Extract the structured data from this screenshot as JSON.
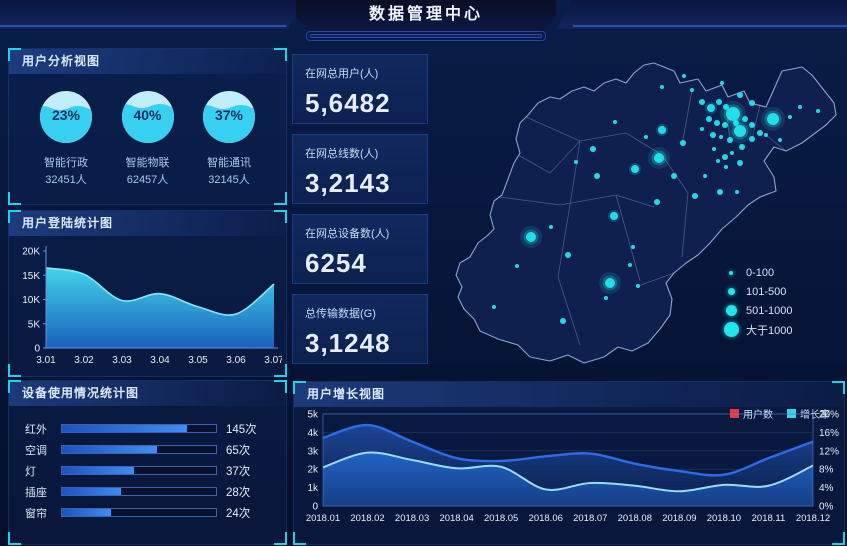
{
  "colors": {
    "accent": "#1fd4e8",
    "dot_cyan": "#22e5ee",
    "bar_blue": "#2e7be4",
    "users_line": "#2e6be8",
    "growth_line": "#9adcf6",
    "legend_users_red": "#e23c3c",
    "legend_growth_cyan": "#35d3ea"
  },
  "header": {
    "title": "数据管理中心"
  },
  "panels": {
    "user_analysis": {
      "title": "用户分析视图",
      "gauges": [
        {
          "percent": "23%",
          "label": "智能行政",
          "count": "32451人"
        },
        {
          "percent": "40%",
          "label": "智能物联",
          "count": "62457人"
        },
        {
          "percent": "37%",
          "label": "智能通讯",
          "count": "32145人"
        }
      ]
    },
    "login": {
      "title": "用户登陆统计图"
    },
    "device": {
      "title": "设备使用情况统计图"
    },
    "growth": {
      "title": "用户增长视图",
      "legend": [
        {
          "label": "用户数",
          "color": "#e23c3c"
        },
        {
          "label": "增长率",
          "color": "#35d3ea"
        }
      ]
    }
  },
  "stats": {
    "items": [
      {
        "label": "在网总用户(人)",
        "value": "5,6482"
      },
      {
        "label": "在网总线数(人)",
        "value": "3,2143"
      },
      {
        "label": "在网总设备数(人)",
        "value": "6254"
      },
      {
        "label": "总传输数据(G)",
        "value": "3,1248"
      }
    ]
  },
  "map": {
    "legend": [
      {
        "label": "0-100",
        "size": 4
      },
      {
        "label": "101-500",
        "size": 7
      },
      {
        "label": "501-1000",
        "size": 11
      },
      {
        "label": "大于1000",
        "size": 15
      }
    ],
    "points": [
      [
        303,
        69,
        7
      ],
      [
        310,
        86,
        6
      ],
      [
        343,
        74,
        6
      ],
      [
        229,
        113,
        5
      ],
      [
        262,
        45,
        2
      ],
      [
        272,
        57,
        3
      ],
      [
        281,
        63,
        4
      ],
      [
        289,
        57,
        3
      ],
      [
        296,
        62,
        3
      ],
      [
        279,
        74,
        3
      ],
      [
        287,
        78,
        3
      ],
      [
        295,
        80,
        3
      ],
      [
        272,
        84,
        2
      ],
      [
        283,
        90,
        3
      ],
      [
        291,
        92,
        2
      ],
      [
        300,
        95,
        3
      ],
      [
        306,
        78,
        3
      ],
      [
        315,
        74,
        3
      ],
      [
        322,
        80,
        3
      ],
      [
        330,
        88,
        3
      ],
      [
        336,
        90,
        2
      ],
      [
        322,
        94,
        3
      ],
      [
        312,
        102,
        3
      ],
      [
        302,
        108,
        2
      ],
      [
        295,
        112,
        3
      ],
      [
        284,
        104,
        2
      ],
      [
        288,
        116,
        2
      ],
      [
        296,
        122,
        2
      ],
      [
        310,
        118,
        3
      ],
      [
        232,
        42,
        2
      ],
      [
        254,
        31,
        2
      ],
      [
        292,
        38,
        2
      ],
      [
        310,
        50,
        3
      ],
      [
        322,
        58,
        3
      ],
      [
        350,
        95,
        2
      ],
      [
        360,
        72,
        2
      ],
      [
        370,
        62,
        2
      ],
      [
        388,
        66,
        2
      ],
      [
        216,
        92,
        2
      ],
      [
        253,
        98,
        3
      ],
      [
        185,
        77,
        2
      ],
      [
        146,
        117,
        2
      ],
      [
        163,
        104,
        3
      ],
      [
        167,
        131,
        3
      ],
      [
        205,
        124,
        4
      ],
      [
        232,
        85,
        4
      ],
      [
        244,
        131,
        3
      ],
      [
        265,
        151,
        3
      ],
      [
        275,
        131,
        2
      ],
      [
        227,
        157,
        3
      ],
      [
        203,
        202,
        2
      ],
      [
        184,
        171,
        4
      ],
      [
        101,
        192,
        5
      ],
      [
        138,
        210,
        3
      ],
      [
        87,
        221,
        2
      ],
      [
        121,
        182,
        2
      ],
      [
        180,
        238,
        5
      ],
      [
        176,
        253,
        2
      ],
      [
        133,
        276,
        3
      ],
      [
        64,
        262,
        2
      ],
      [
        200,
        220,
        2
      ],
      [
        208,
        241,
        2
      ],
      [
        290,
        147,
        3
      ],
      [
        307,
        147,
        2
      ]
    ]
  },
  "chart_data": [
    {
      "id": "login",
      "type": "area",
      "title": "用户登陆统计图",
      "x": [
        "3.01",
        "3.02",
        "3.03",
        "3.04",
        "3.05",
        "3.06",
        "3.07"
      ],
      "values": [
        16500,
        15200,
        9800,
        11200,
        8500,
        7000,
        13200
      ],
      "yticks": [
        "0",
        "5K",
        "10K",
        "15K",
        "20K"
      ],
      "ylim": [
        0,
        20000
      ],
      "grid": false
    },
    {
      "id": "growth",
      "type": "area",
      "title": "用户增长视图",
      "x": [
        "2018.01",
        "2018.02",
        "2018.03",
        "2018.04",
        "2018.05",
        "2018.06",
        "2018.07",
        "2018.08",
        "2018.09",
        "2018.10",
        "2018.11",
        "2018.12"
      ],
      "series": [
        {
          "name": "用户数",
          "axis": "left",
          "values": [
            3700,
            4400,
            3500,
            2600,
            2450,
            2700,
            2850,
            2300,
            1900,
            1700,
            2600,
            3500
          ]
        },
        {
          "name": "增长率",
          "axis": "right",
          "values": [
            8.4,
            11.6,
            10.0,
            8.2,
            8.5,
            3.6,
            5.0,
            4.4,
            3.2,
            4.6,
            4.4,
            8.8
          ]
        }
      ],
      "left_ticks": [
        "0",
        "1k",
        "2k",
        "3k",
        "4k",
        "5k"
      ],
      "right_ticks": [
        "0%",
        "4%",
        "8%",
        "12%",
        "16%",
        "20%"
      ],
      "ylim_left": [
        0,
        5000
      ],
      "ylim_right": [
        0,
        20
      ],
      "legend_position": "top-right",
      "grid": true
    },
    {
      "id": "device",
      "type": "bar",
      "orientation": "horizontal",
      "rows": [
        {
          "label": "红外",
          "value": "145次",
          "count": 145,
          "pct": 81
        },
        {
          "label": "空调",
          "value": "65次",
          "count": 65,
          "pct": 62
        },
        {
          "label": "灯",
          "value": "37次",
          "count": 37,
          "pct": 47
        },
        {
          "label": "插座",
          "value": "28次",
          "count": 28,
          "pct": 38
        },
        {
          "label": "窗帘",
          "value": "24次",
          "count": 24,
          "pct": 32
        }
      ]
    },
    {
      "id": "gauges",
      "type": "pie",
      "items": [
        {
          "label": "智能行政",
          "percent": 23,
          "count": 32451
        },
        {
          "label": "智能物联",
          "percent": 40,
          "count": 62457
        },
        {
          "label": "智能通讯",
          "percent": 37,
          "count": 32145
        }
      ]
    }
  ]
}
